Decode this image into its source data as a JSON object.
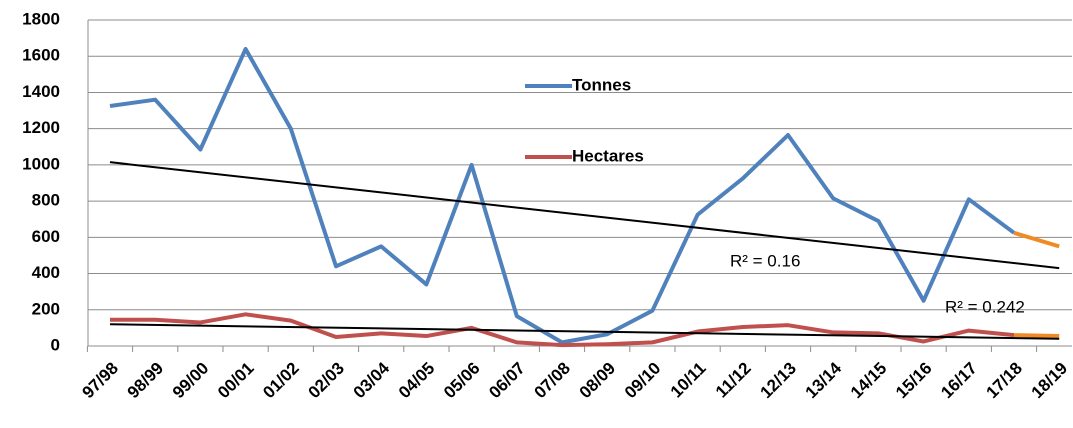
{
  "chart_data": {
    "type": "line",
    "categories": [
      "97/98",
      "98/99",
      "99/00",
      "00/01",
      "01/02",
      "02/03",
      "03/04",
      "04/05",
      "05/06",
      "06/07",
      "07/08",
      "08/09",
      "09/10",
      "10/11",
      "11/12",
      "12/13",
      "13/14",
      "14/15",
      "15/16",
      "16/17",
      "17/18",
      "18/19"
    ],
    "series": [
      {
        "name": "Tonnes",
        "color": "#4f81bd",
        "last_segment_color": "#f08a24",
        "values": [
          1325,
          1360,
          1085,
          1640,
          1200,
          440,
          550,
          340,
          1000,
          165,
          20,
          65,
          195,
          725,
          925,
          1165,
          815,
          690,
          250,
          810,
          625,
          550
        ],
        "trendline": {
          "start": 1015,
          "end": 430,
          "color": "#000000",
          "label": "R² = 0.16"
        }
      },
      {
        "name": "Hectares",
        "color": "#c0504d",
        "last_segment_color": "#f08a24",
        "values": [
          145,
          145,
          130,
          175,
          140,
          50,
          70,
          55,
          100,
          20,
          5,
          10,
          20,
          80,
          105,
          115,
          75,
          70,
          25,
          85,
          60,
          55
        ],
        "trendline": {
          "start": 120,
          "end": 40,
          "color": "#000000",
          "label": "R² = 0.242"
        }
      }
    ],
    "ylim": [
      0,
      1800
    ],
    "yticks": [
      0,
      200,
      400,
      600,
      800,
      1000,
      1200,
      1400,
      1600,
      1800
    ],
    "grid": true
  }
}
